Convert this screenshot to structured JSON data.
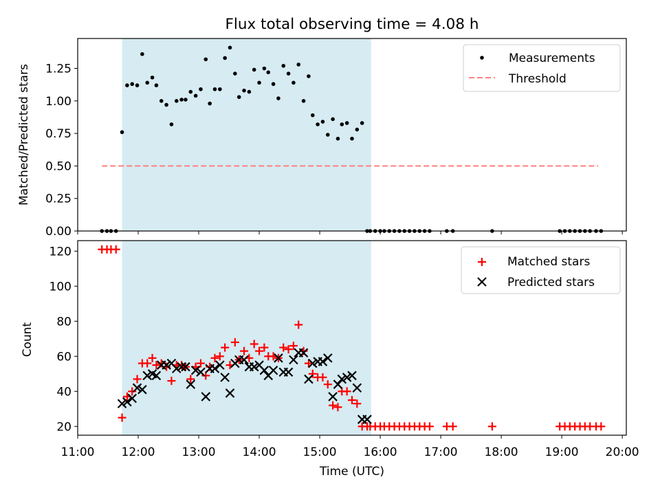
{
  "title": "Flux total observing time = 4.08 h",
  "colors": {
    "observing_band": "#add8e6",
    "measurements": "#000000",
    "threshold": "#ff7f7f",
    "matched": "#ff0000",
    "predicted": "#000000"
  },
  "chart_data": [
    {
      "type": "scatter",
      "ylabel": "Matched/Predicted stars",
      "ylim": [
        0,
        1.48
      ],
      "yticks": [
        0,
        0.25,
        0.5,
        0.75,
        1.0,
        1.25
      ],
      "ytick_labels": [
        "0.00",
        "0.25",
        "0.50",
        "0.75",
        "1.00",
        "1.25"
      ],
      "xlim": [
        "11:00",
        "20:04"
      ],
      "xticks": [
        "12:00",
        "13:00",
        "14:00",
        "15:00",
        "16:00",
        "17:00",
        "18:00",
        "19:00",
        "20:00"
      ],
      "legend": {
        "position": "top-right",
        "entries": [
          "Measurements",
          "Threshold"
        ]
      },
      "observing_window": [
        "11:44",
        "15:51"
      ],
      "threshold": {
        "name": "Threshold",
        "value": 0.5,
        "x": [
          "11:24",
          "19:36"
        ]
      },
      "series": [
        {
          "name": "Measurements",
          "marker": "dot",
          "x": [
            "11:24",
            "11:29",
            "11:33",
            "11:38",
            "11:44",
            "11:49",
            "11:54",
            "11:59",
            "12:04",
            "12:09",
            "12:14",
            "12:18",
            "12:23",
            "12:28",
            "12:33",
            "12:38",
            "12:43",
            "12:47",
            "12:52",
            "12:57",
            "13:02",
            "13:07",
            "13:11",
            "13:16",
            "13:21",
            "13:26",
            "13:31",
            "13:36",
            "13:40",
            "13:45",
            "13:50",
            "13:55",
            "14:00",
            "14:05",
            "14:09",
            "14:14",
            "14:19",
            "14:24",
            "14:29",
            "14:34",
            "14:39",
            "14:44",
            "14:49",
            "14:53",
            "14:58",
            "15:03",
            "15:08",
            "15:13",
            "15:18",
            "15:22",
            "15:27",
            "15:32",
            "15:37",
            "15:42",
            "15:47",
            "15:50",
            "15:55",
            "16:00",
            "16:04",
            "16:09",
            "16:14",
            "16:19",
            "16:24",
            "16:29",
            "16:34",
            "16:39",
            "16:44",
            "16:49",
            "17:06",
            "17:12",
            "17:51",
            "18:58",
            "19:03",
            "19:08",
            "19:13",
            "19:18",
            "19:23",
            "19:28",
            "19:34",
            "19:39"
          ],
          "y": [
            0,
            0,
            0,
            0,
            0.76,
            1.12,
            1.13,
            1.12,
            1.36,
            1.14,
            1.18,
            1.12,
            1.0,
            0.97,
            0.82,
            1.0,
            1.01,
            1.01,
            1.07,
            1.04,
            1.09,
            1.32,
            0.98,
            1.09,
            1.09,
            1.33,
            1.41,
            1.21,
            1.03,
            1.08,
            1.07,
            1.24,
            1.14,
            1.25,
            1.22,
            1.13,
            1.02,
            1.27,
            1.21,
            1.14,
            1.28,
            1.0,
            1.19,
            0.89,
            0.82,
            0.84,
            0.74,
            0.86,
            0.71,
            0.82,
            0.83,
            0.71,
            0.78,
            0.83,
            0,
            0,
            0,
            0,
            0,
            0,
            0,
            0,
            0,
            0,
            0,
            0,
            0,
            0,
            0,
            0,
            0,
            0,
            0,
            0,
            0,
            0,
            0,
            0,
            0,
            0
          ]
        }
      ]
    },
    {
      "type": "scatter",
      "xlabel": "Time (UTC)",
      "ylabel": "Count",
      "ylim": [
        15,
        126
      ],
      "yticks": [
        20,
        40,
        60,
        80,
        100,
        120
      ],
      "ytick_labels": [
        "20",
        "40",
        "60",
        "80",
        "100",
        "120"
      ],
      "xlim": [
        "11:00",
        "20:04"
      ],
      "xticks": [
        "11:00",
        "12:00",
        "13:00",
        "14:00",
        "15:00",
        "16:00",
        "17:00",
        "18:00",
        "19:00",
        "20:00"
      ],
      "legend": {
        "position": "top-right",
        "entries": [
          "Matched stars",
          "Predicted stars"
        ]
      },
      "observing_window": [
        "11:44",
        "15:51"
      ],
      "series": [
        {
          "name": "Matched stars",
          "marker": "plus",
          "x": [
            "11:24",
            "11:29",
            "11:33",
            "11:38",
            "11:44",
            "11:49",
            "11:54",
            "11:59",
            "12:04",
            "12:09",
            "12:14",
            "12:18",
            "12:23",
            "12:28",
            "12:33",
            "12:38",
            "12:43",
            "12:47",
            "12:52",
            "12:57",
            "13:02",
            "13:07",
            "13:11",
            "13:16",
            "13:21",
            "13:26",
            "13:31",
            "13:36",
            "13:40",
            "13:45",
            "13:50",
            "13:55",
            "14:00",
            "14:05",
            "14:09",
            "14:14",
            "14:19",
            "14:24",
            "14:29",
            "14:34",
            "14:39",
            "14:44",
            "14:49",
            "14:53",
            "14:58",
            "15:03",
            "15:08",
            "15:13",
            "15:18",
            "15:22",
            "15:27",
            "15:32",
            "15:37",
            "15:42",
            "15:47",
            "15:50",
            "15:55",
            "16:00",
            "16:04",
            "16:09",
            "16:14",
            "16:19",
            "16:24",
            "16:29",
            "16:34",
            "16:39",
            "16:44",
            "16:49",
            "17:06",
            "17:12",
            "17:51",
            "18:58",
            "19:03",
            "19:08",
            "19:13",
            "19:18",
            "19:23",
            "19:28",
            "19:34",
            "19:39"
          ],
          "y": [
            121,
            121,
            121,
            121,
            25,
            37,
            40,
            47,
            56,
            56,
            59,
            55,
            56,
            54,
            46,
            55,
            55,
            54,
            47,
            54,
            56,
            49,
            54,
            59,
            60,
            65,
            55,
            68,
            58,
            63,
            59,
            67,
            63,
            65,
            60,
            60,
            59,
            65,
            64,
            66,
            78,
            63,
            56,
            50,
            48,
            48,
            44,
            32,
            31,
            40,
            40,
            35,
            33,
            20,
            20,
            20,
            20,
            20,
            20,
            20,
            20,
            20,
            20,
            20,
            20,
            20,
            20,
            20,
            20,
            20,
            20,
            20,
            20,
            20,
            20,
            20,
            20,
            20,
            20,
            20
          ]
        },
        {
          "name": "Predicted stars",
          "marker": "x",
          "x": [
            "11:44",
            "11:49",
            "11:54",
            "11:59",
            "12:04",
            "12:09",
            "12:14",
            "12:18",
            "12:23",
            "12:28",
            "12:33",
            "12:38",
            "12:43",
            "12:47",
            "12:52",
            "12:57",
            "13:02",
            "13:07",
            "13:11",
            "13:16",
            "13:21",
            "13:26",
            "13:31",
            "13:36",
            "13:40",
            "13:45",
            "13:50",
            "13:55",
            "14:00",
            "14:05",
            "14:09",
            "14:14",
            "14:19",
            "14:24",
            "14:29",
            "14:34",
            "14:39",
            "14:44",
            "14:49",
            "14:53",
            "14:58",
            "15:03",
            "15:08",
            "15:13",
            "15:18",
            "15:22",
            "15:27",
            "15:32",
            "15:37",
            "15:42",
            "15:47"
          ],
          "y": [
            33,
            34,
            36,
            42,
            41,
            49,
            50,
            49,
            55,
            55,
            56,
            53,
            54,
            54,
            44,
            52,
            51,
            37,
            53,
            53,
            55,
            48,
            39,
            56,
            58,
            58,
            54,
            54,
            55,
            52,
            49,
            52,
            59,
            51,
            51,
            58,
            62,
            62,
            47,
            56,
            57,
            57,
            59,
            37,
            44,
            47,
            48,
            49,
            42,
            24,
            24
          ]
        }
      ]
    }
  ]
}
